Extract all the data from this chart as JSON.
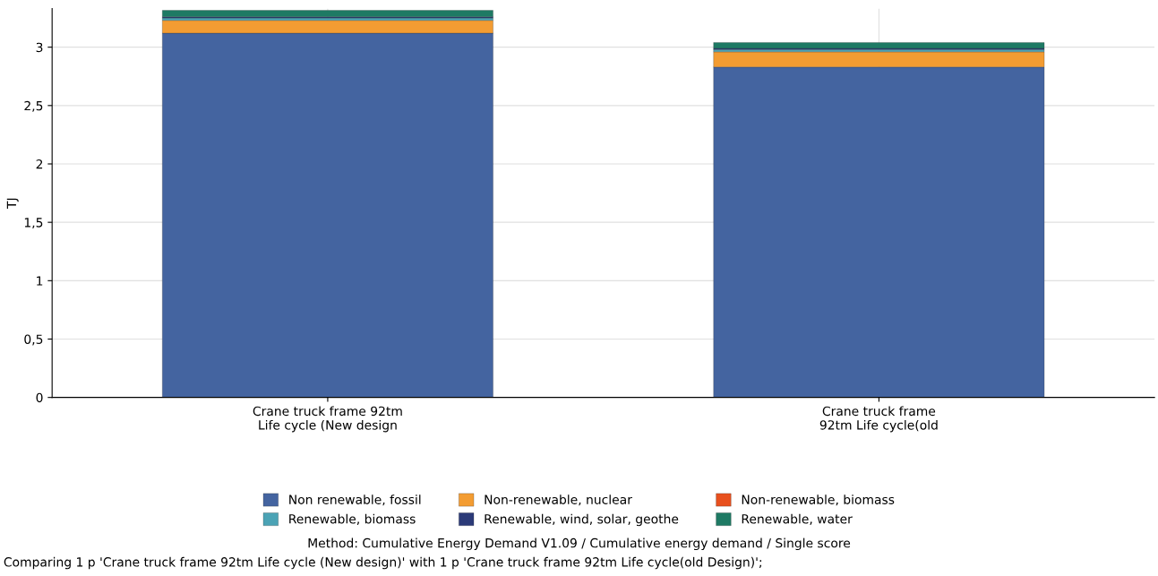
{
  "chart_data": {
    "type": "bar",
    "stacked": true,
    "ylabel": "TJ",
    "categories": [
      "Crane truck frame 92tm\nLife cycle (New design",
      "Crane truck frame\n92tm Life cycle(old"
    ],
    "series": [
      {
        "name": "Non renewable, fossil",
        "color": "#4464a0",
        "values": [
          3.12,
          2.83
        ]
      },
      {
        "name": "Non-renewable, nuclear",
        "color": "#f39c32",
        "values": [
          0.11,
          0.13
        ]
      },
      {
        "name": "Non-renewable, biomass",
        "color": "#e8501e",
        "values": [
          null,
          null
        ]
      },
      {
        "name": "Renewable, biomass",
        "color": "#4ba3b5",
        "values": [
          0.02,
          0.02
        ]
      },
      {
        "name": "Renewable, wind, solar, geothe",
        "color": "#2b3a78",
        "values": [
          0.01,
          0.01
        ]
      },
      {
        "name": "Renewable, water",
        "color": "#1e7a64",
        "values": [
          0.055,
          0.05
        ]
      }
    ],
    "ylim": [
      0,
      3.33
    ],
    "yticks": [
      {
        "value": 0,
        "label": "0"
      },
      {
        "value": 0.5,
        "label": "0,5"
      },
      {
        "value": 1,
        "label": "1"
      },
      {
        "value": 1.5,
        "label": "1,5"
      },
      {
        "value": 2,
        "label": "2"
      },
      {
        "value": 2.5,
        "label": "2,5"
      },
      {
        "value": 3,
        "label": "3"
      }
    ],
    "grid": true,
    "legend": "bottom",
    "annotations": [
      "Method: Cumulative Energy Demand V1.09 / Cumulative energy demand / Single score",
      "Comparing 1 p 'Crane truck frame 92tm Life cycle (New design)' with 1 p 'Crane truck frame 92tm Life cycle(old Design)';"
    ]
  }
}
